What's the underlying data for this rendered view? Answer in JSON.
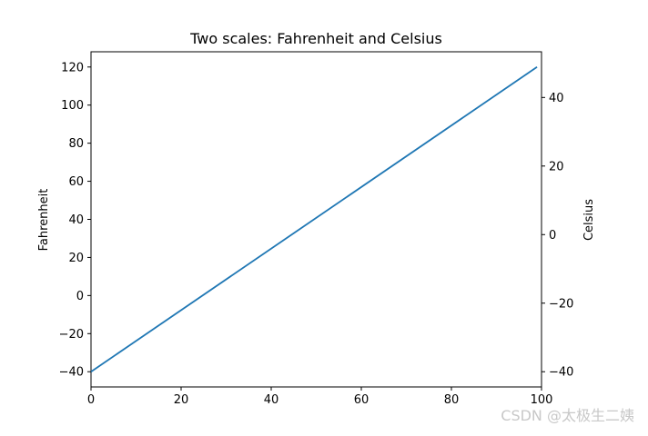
{
  "chart_data": {
    "type": "line",
    "title": "Two scales: Fahrenheit and Celsius",
    "xlabel": "",
    "ylabel": "Fahrenheit",
    "y2label": "Celsius",
    "xlim": [
      0,
      100
    ],
    "ylim": [
      -48,
      128
    ],
    "y2lim": [
      -44.444,
      53.333
    ],
    "x_ticks": [
      "0",
      "20",
      "40",
      "60",
      "80",
      "100"
    ],
    "y_ticks": [
      "−40",
      "−20",
      "0",
      "20",
      "40",
      "60",
      "80",
      "100",
      "120"
    ],
    "y2_ticks": [
      "−40",
      "−20",
      "0",
      "20",
      "40"
    ],
    "grid": false,
    "series": [
      {
        "color": "#1f77b4",
        "x": [
          0,
          99
        ],
        "y": [
          -40,
          120
        ]
      }
    ]
  },
  "watermark": "CSDN @太极生二姨"
}
